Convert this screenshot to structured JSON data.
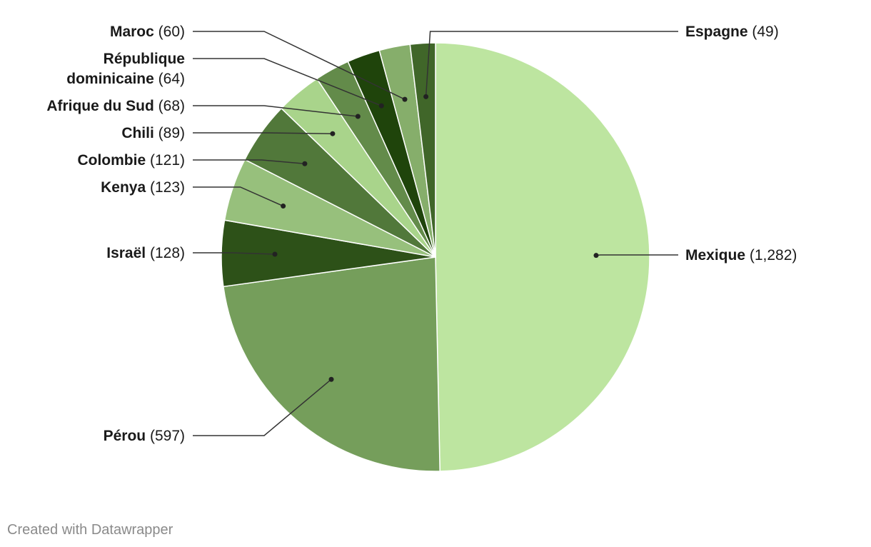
{
  "chart_data": {
    "type": "pie",
    "slices": [
      {
        "name": "Mexique",
        "value": 1282,
        "value_label": "(1,282)",
        "color": "#bde5a0"
      },
      {
        "name": "Pérou",
        "value": 597,
        "value_label": "(597)",
        "color": "#759e5b"
      },
      {
        "name": "Israël",
        "value": 128,
        "value_label": "(128)",
        "color": "#2d5118"
      },
      {
        "name": "Kenya",
        "value": 123,
        "value_label": "(123)",
        "color": "#97c07c"
      },
      {
        "name": "Colombie",
        "value": 121,
        "value_label": "(121)",
        "color": "#51783a"
      },
      {
        "name": "Chili",
        "value": 89,
        "value_label": "(89)",
        "color": "#a9d48b"
      },
      {
        "name": "Afrique du Sud",
        "value": 68,
        "value_label": "(68)",
        "color": "#638b4a"
      },
      {
        "name": "République dominicaine",
        "value": 64,
        "value_label": "(64)",
        "color": "#1f440b"
      },
      {
        "name": "Maroc",
        "value": 60,
        "value_label": "(60)",
        "color": "#86ae6b"
      },
      {
        "name": "Espagne",
        "value": 49,
        "value_label": "(49)",
        "color": "#406629"
      }
    ]
  },
  "footer": {
    "credit": "Created with Datawrapper"
  }
}
